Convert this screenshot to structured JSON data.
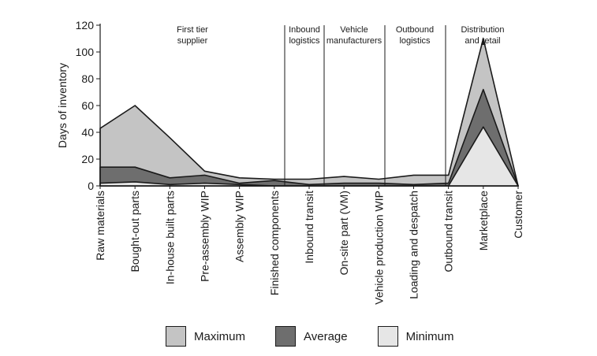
{
  "chart_data": {
    "type": "area",
    "ylabel": "Days of inventory",
    "xlabel": "",
    "ylim": [
      0,
      120
    ],
    "yticks": [
      0,
      20,
      40,
      60,
      80,
      100,
      120
    ],
    "categories": [
      "Raw materials",
      "Bought-out parts",
      "In-house built parts",
      "Pre-assembly WIP",
      "Assembly WIP",
      "Finished components",
      "Inbound transit",
      "On-site part (VM)",
      "Vehicle production WIP",
      "Loading and despatch",
      "Outbound transit",
      "Marketplace",
      "Customer"
    ],
    "series": [
      {
        "name": "Maximum",
        "color": "#c4c4c4",
        "values": [
          43,
          60,
          36,
          11,
          6,
          5,
          5,
          7,
          5,
          8,
          8,
          110,
          0
        ]
      },
      {
        "name": "Average",
        "color": "#6e6e6e",
        "values": [
          14,
          14,
          6,
          8,
          2,
          4,
          1,
          2,
          2,
          1,
          2,
          72,
          0
        ]
      },
      {
        "name": "Minimum",
        "color": "#e6e6e6",
        "values": [
          2,
          3,
          1,
          2,
          1,
          0,
          0,
          0,
          0,
          0,
          0,
          44,
          0
        ]
      }
    ],
    "regions": [
      {
        "label": [
          "First tier",
          "supplier"
        ]
      },
      {
        "label": [
          "Inbound",
          "logistics"
        ]
      },
      {
        "label": [
          "Vehicle",
          "manufacturers"
        ]
      },
      {
        "label": [
          "Outbound",
          "logistics"
        ]
      },
      {
        "label": [
          "Distribution",
          "and retail"
        ]
      }
    ],
    "legend_position": "bottom",
    "grid": false
  }
}
